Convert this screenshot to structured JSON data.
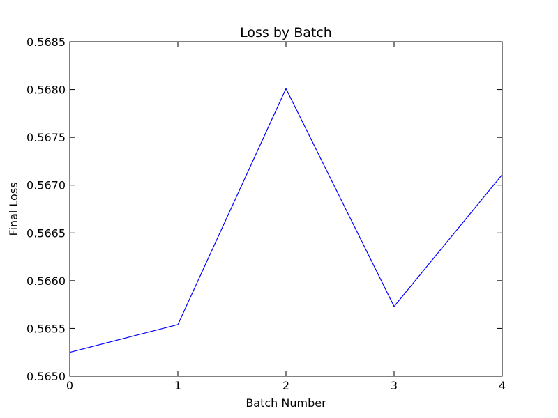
{
  "chart_data": {
    "type": "line",
    "title": "Loss by Batch",
    "xlabel": "Batch Number",
    "ylabel": "Final Loss",
    "xlim": [
      0,
      4
    ],
    "ylim": [
      0.565,
      0.5685
    ],
    "x_ticks": [
      "0",
      "1",
      "2",
      "3",
      "4"
    ],
    "y_ticks": [
      "0.5650",
      "0.5655",
      "0.5660",
      "0.5665",
      "0.5670",
      "0.5675",
      "0.5680",
      "0.5685"
    ],
    "grid": false,
    "series": [
      {
        "color": "#0000ff",
        "x": [
          0,
          1,
          2,
          3,
          4
        ],
        "y": [
          0.56525,
          0.56554,
          0.56801,
          0.56573,
          0.56711
        ]
      }
    ]
  }
}
